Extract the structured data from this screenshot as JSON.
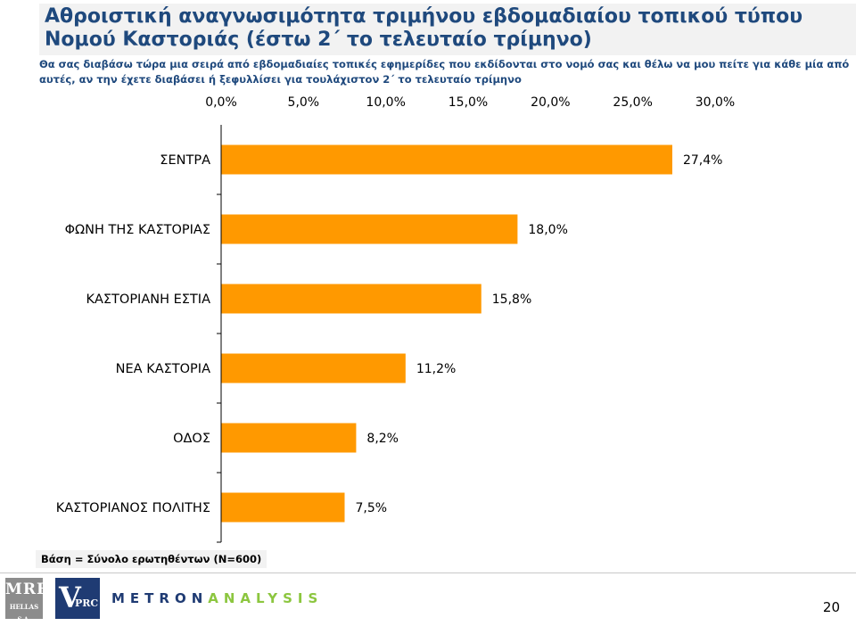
{
  "slide": {
    "title": "Αθροιστική αναγνωσιμότητα τριμήνου εβδομαδιαίου τοπικού τύπου\nΝομού Καστοριάς (έστω 2΄ το τελευταίο τρίμηνο)",
    "question": "Θα σας διαβάσω τώρα μια σειρά από εβδομαδιαίες τοπικές εφημερίδες που εκδίδονται στο νομό σας και θέλω να μου πείτε για κάθε μία από αυτές, αν την έχετε διαβάσει ή ξεφυλλίσει για τουλάχιστον 2΄ το τελευταίο τρίμηνο",
    "base_note": "Βάση = Σύνολο ερωτηθέντων (Ν=600)",
    "page_number": "20"
  },
  "logos": {
    "mrb_big": "MRB",
    "mrb_small": "HELLAS S.A.",
    "vprc_v": "V",
    "vprc_rest": "PRC",
    "metron_a": "METRON",
    "metron_b": "ANALYSIS"
  },
  "chart_data": {
    "type": "bar",
    "orientation": "horizontal",
    "categories": [
      "ΣΕΝΤΡΑ",
      "ΦΩΝΗ ΤΗΣ ΚΑΣΤΟΡΙΑΣ",
      "ΚΑΣΤΟΡΙΑΝΗ ΕΣΤΙΑ",
      "ΝΕΑ ΚΑΣΤΟΡΙΑ",
      "ΟΔΟΣ",
      "ΚΑΣΤΟΡΙΑΝΟΣ ΠΟΛΙΤΗΣ"
    ],
    "values": [
      27.4,
      18.0,
      15.8,
      11.2,
      8.2,
      7.5
    ],
    "data_labels": [
      "27,4%",
      "18,0%",
      "15,8%",
      "11,2%",
      "8,2%",
      "7,5%"
    ],
    "xlim": [
      0,
      30
    ],
    "ticks": [
      0,
      5,
      10,
      15,
      20,
      25,
      30
    ],
    "tick_labels": [
      "0,0%",
      "5,0%",
      "10,0%",
      "15,0%",
      "20,0%",
      "25,0%",
      "30,0%"
    ],
    "axis_position": "top",
    "grid": false,
    "legend": "none",
    "bar_color": "#ff9900"
  }
}
